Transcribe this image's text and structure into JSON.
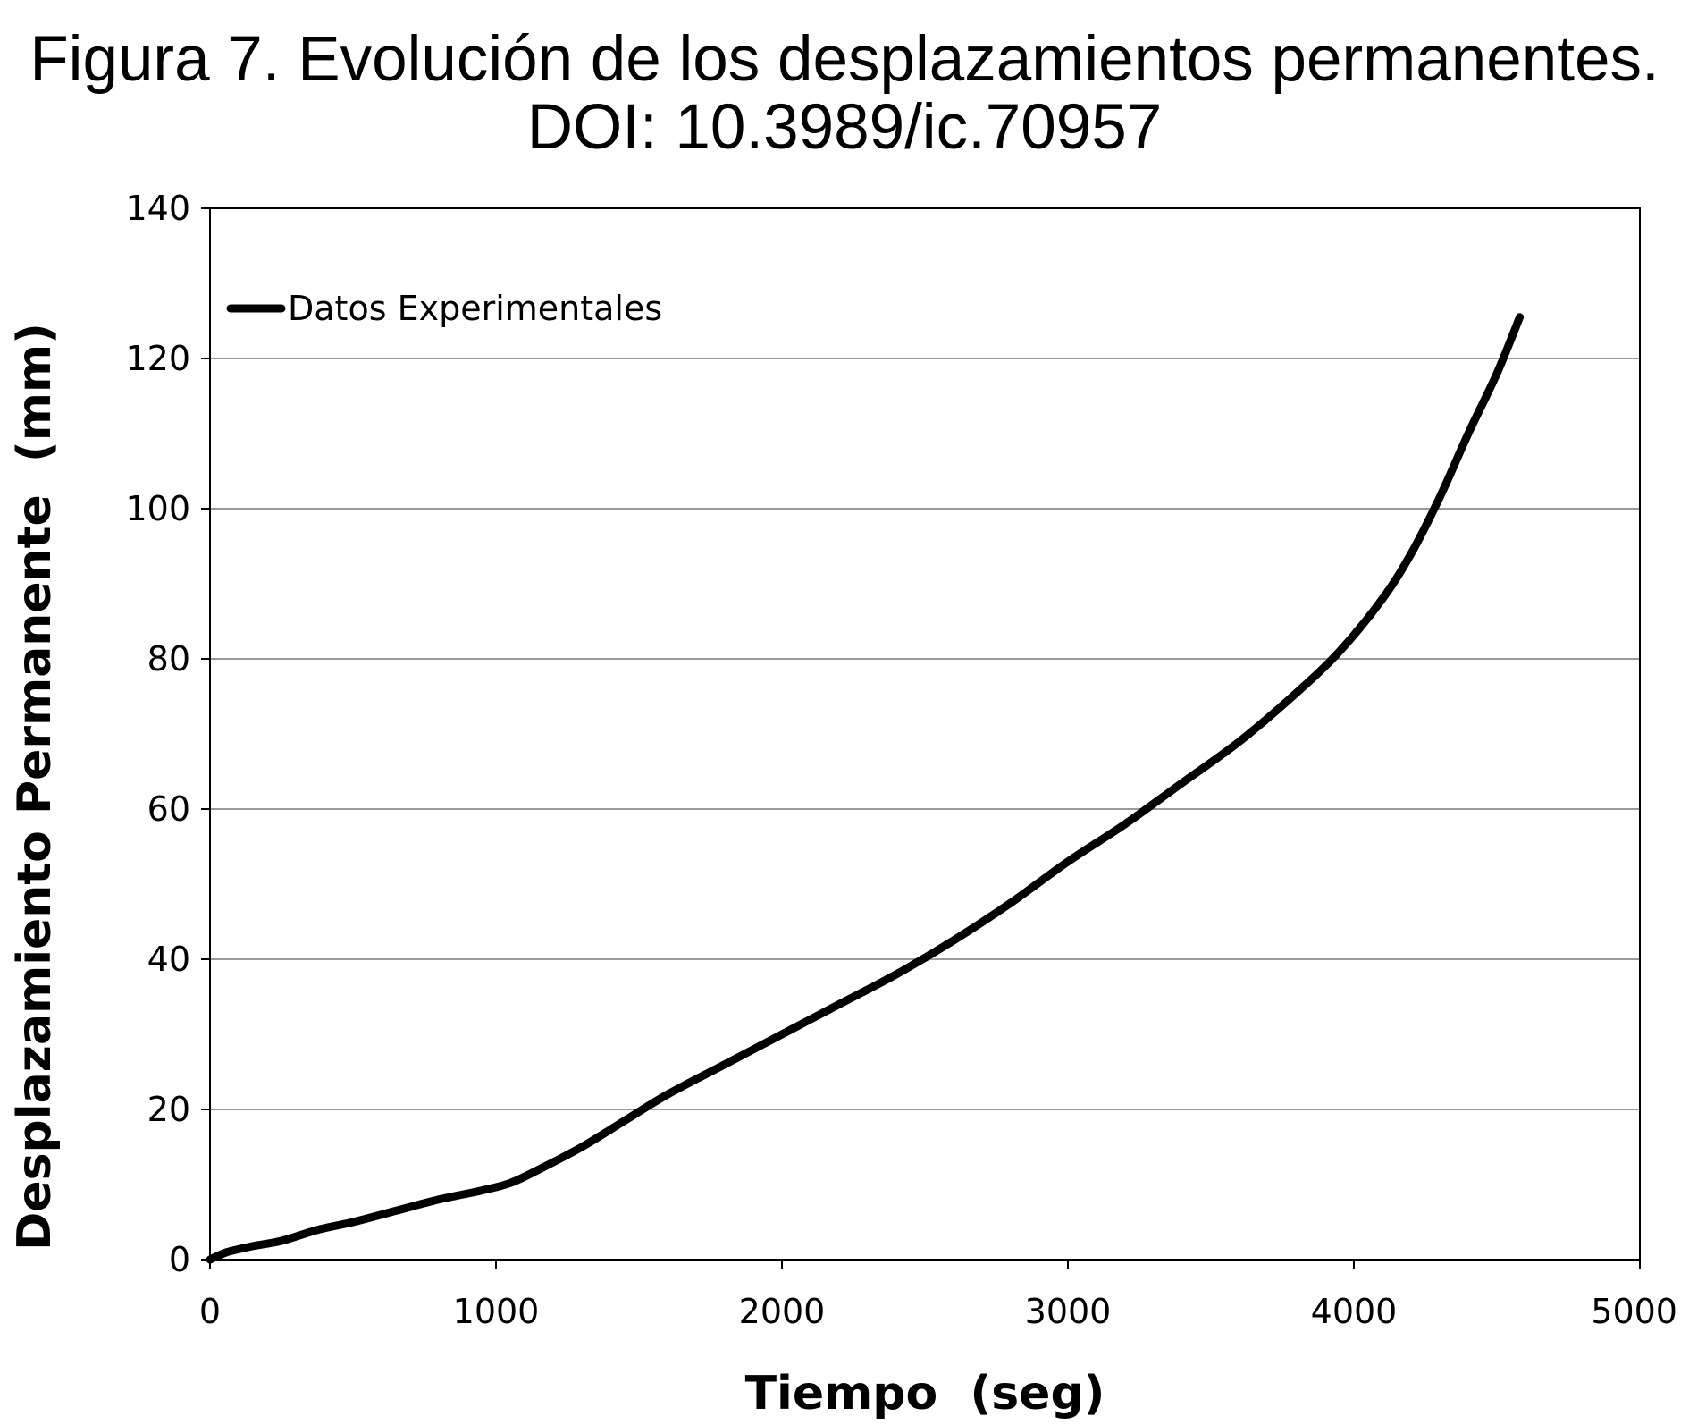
{
  "figure": {
    "title_line1": "Figura 7. Evolución de los desplazamientos permanentes.",
    "title_line2": "DOI: 10.3989/ic.70957"
  },
  "chart_data": {
    "type": "line",
    "xlabel": "Tiempo  (seg)",
    "ylabel": "Desplazamiento Permanente  (mm)",
    "xlim": [
      0,
      5000
    ],
    "ylim": [
      0,
      140
    ],
    "xticks": [
      0,
      1000,
      2000,
      3000,
      4000,
      5000
    ],
    "yticks": [
      0,
      20,
      40,
      60,
      80,
      100,
      120,
      140
    ],
    "grid": true,
    "legend_position": "top-left",
    "series": [
      {
        "name": "Datos Experimentales",
        "color": "#000000",
        "x": [
          0,
          60,
          150,
          250,
          380,
          500,
          650,
          800,
          950,
          1050,
          1150,
          1300,
          1450,
          1600,
          1800,
          2000,
          2200,
          2400,
          2600,
          2800,
          3000,
          3200,
          3400,
          3600,
          3800,
          3950,
          4100,
          4200,
          4300,
          4400,
          4500,
          4580
        ],
        "y": [
          0,
          1.0,
          1.8,
          2.5,
          4.0,
          5.0,
          6.5,
          8.0,
          9.2,
          10.2,
          12.0,
          15.0,
          18.5,
          22.0,
          26.0,
          30.0,
          34.0,
          38.0,
          42.5,
          47.5,
          53.0,
          58.0,
          63.5,
          69.0,
          75.5,
          81.0,
          88.0,
          94.0,
          101.5,
          110.0,
          118.0,
          125.5
        ]
      }
    ]
  }
}
